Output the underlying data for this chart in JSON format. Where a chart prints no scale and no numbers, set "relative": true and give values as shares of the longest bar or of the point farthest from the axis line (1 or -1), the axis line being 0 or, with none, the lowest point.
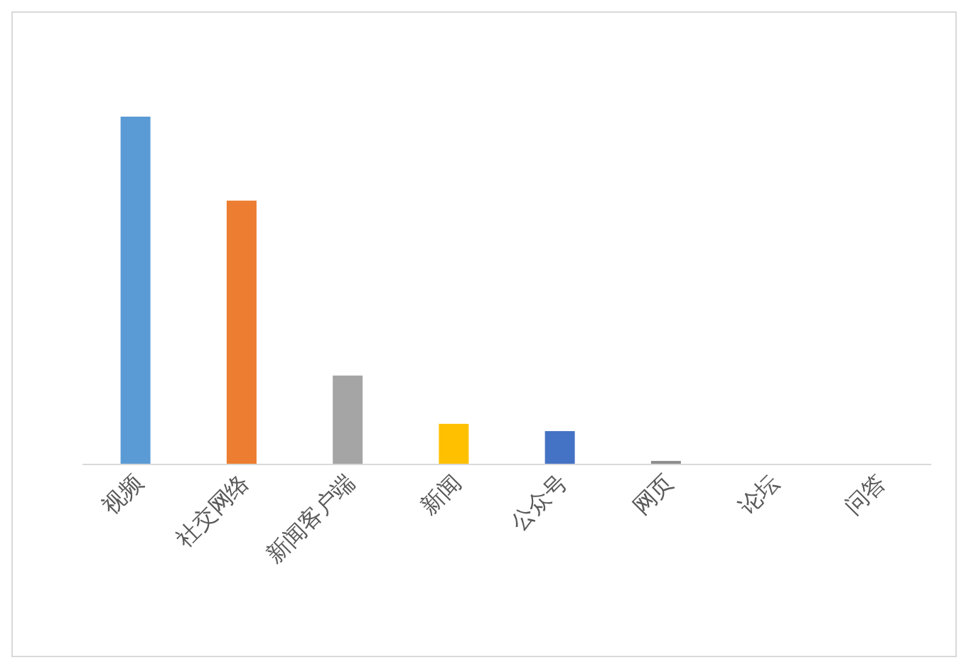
{
  "chart_data": {
    "type": "bar",
    "relative": true,
    "categories": [
      "视频",
      "社交网络",
      "新闻客户端",
      "新闻",
      "公众号",
      "网页",
      "论坛",
      "问答"
    ],
    "values": [
      1,
      0.758,
      0.254,
      0.115,
      0.094,
      0.008,
      0,
      0
    ],
    "colors": [
      "#5b9bd5",
      "#ed7d31",
      "#a5a5a5",
      "#ffc000",
      "#4472c4",
      "#8c8c8c",
      "#70ad47",
      "#264478"
    ]
  }
}
